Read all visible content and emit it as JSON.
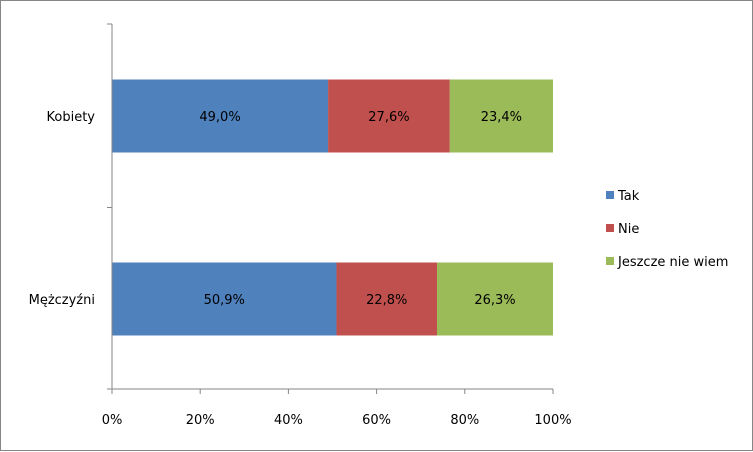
{
  "chart_data": {
    "type": "bar",
    "orientation": "horizontal",
    "stacked": true,
    "categories": [
      "Kobiety",
      "Mężczyźni"
    ],
    "series": [
      {
        "name": "Tak",
        "values": [
          49.0,
          50.9
        ],
        "labels": [
          "49,0%",
          "50,9%"
        ],
        "color": "#4F81BD"
      },
      {
        "name": "Nie",
        "values": [
          27.6,
          22.8
        ],
        "labels": [
          "27,6%",
          "22,8%"
        ],
        "color": "#C0504D"
      },
      {
        "name": "Jeszcze nie wiem",
        "values": [
          23.4,
          26.3
        ],
        "labels": [
          "23,4%",
          "26,3%"
        ],
        "color": "#9BBB59"
      }
    ],
    "xlim": [
      0,
      100
    ],
    "x_ticks": [
      0,
      20,
      40,
      60,
      80,
      100
    ],
    "x_tick_labels": [
      "0%",
      "20%",
      "40%",
      "60%",
      "80%",
      "100%"
    ],
    "grid": false,
    "legend_position": "right"
  }
}
